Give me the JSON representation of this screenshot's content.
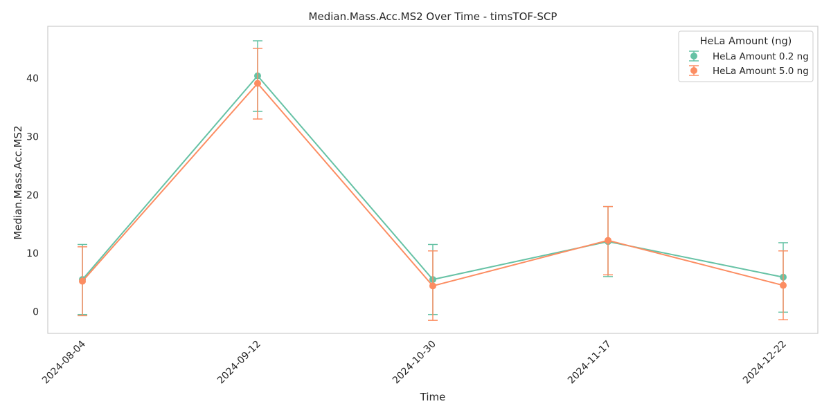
{
  "chart_data": {
    "type": "line",
    "title": "Median.Mass.Acc.MS2 Over Time - timsTOF-SCP",
    "xlabel": "Time",
    "ylabel": "Median.Mass.Acc.MS2",
    "categories": [
      "2024-08-04",
      "2024-09-12",
      "2024-10-30",
      "2024-11-17",
      "2024-12-22"
    ],
    "ylim": [
      -4,
      48.5
    ],
    "yticks": [
      0,
      10,
      20,
      30,
      40
    ],
    "grid": false,
    "legend": {
      "title": "HeLa Amount (ng)",
      "placement": "top-right"
    },
    "series": [
      {
        "name": "HeLa Amount 0.2 ng",
        "color": "#66c2a5",
        "values": [
          5.5,
          40.4,
          5.5,
          12.0,
          5.9
        ],
        "err_low": [
          -0.5,
          34.3,
          -0.5,
          6.0,
          -0.1
        ],
        "err_high": [
          11.5,
          46.4,
          11.5,
          18.0,
          11.8
        ]
      },
      {
        "name": "HeLa Amount 5.0 ng",
        "color": "#fc8d62",
        "values": [
          5.2,
          39.1,
          4.4,
          12.2,
          4.5
        ],
        "err_low": [
          -0.7,
          33.0,
          -1.5,
          6.3,
          -1.4
        ],
        "err_high": [
          11.1,
          45.1,
          10.4,
          18.0,
          10.4
        ]
      }
    ]
  }
}
